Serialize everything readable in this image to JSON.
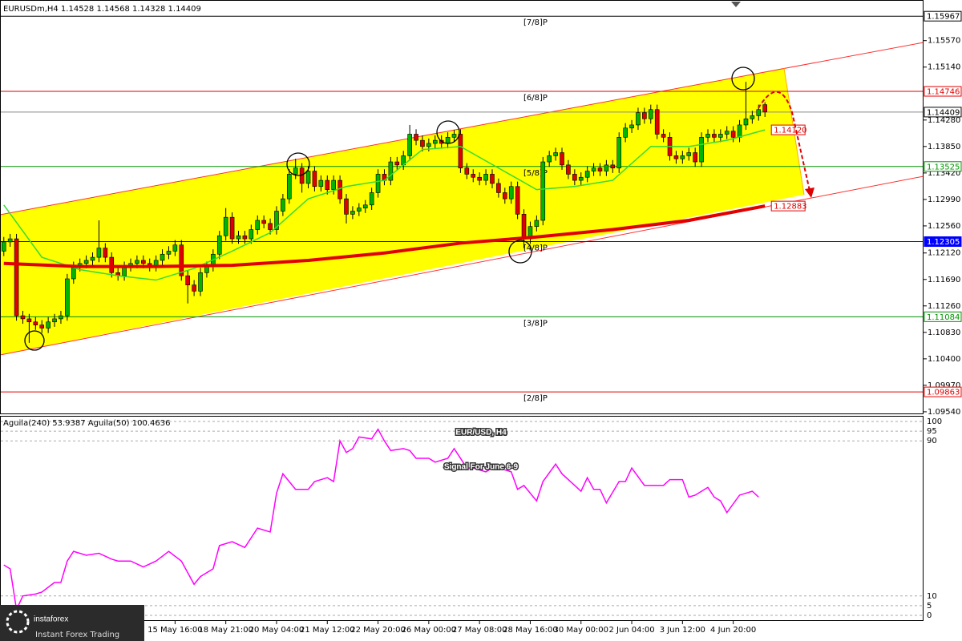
{
  "chart_data": {
    "type": "candlestick",
    "header": "EURUSDm,H4  1.14528 1.14568 1.14328 1.14409",
    "title": "EUR/USD, H4",
    "subtitle": "Signal For June 6-9",
    "up_color": "#00b400",
    "down_color": "#e00000",
    "xlim": [
      -0.6,
      145
    ],
    "ylim": [
      1.095,
      1.1623
    ],
    "yticks": [
      {
        "value": 1.1557,
        "label": "1.15570"
      },
      {
        "value": 1.1514,
        "label": "1.15140"
      },
      {
        "value": 1.1428,
        "label": "1.14280"
      },
      {
        "value": 1.1385,
        "label": "1.13850"
      },
      {
        "value": 1.1342,
        "label": "1.13420"
      },
      {
        "value": 1.1299,
        "label": "1.12990"
      },
      {
        "value": 1.1256,
        "label": "1.12560"
      },
      {
        "value": 1.1212,
        "label": "1.12120"
      },
      {
        "value": 1.1169,
        "label": "1.11690"
      },
      {
        "value": 1.1126,
        "label": "1.11260"
      },
      {
        "value": 1.1083,
        "label": "1.10830"
      },
      {
        "value": 1.104,
        "label": "1.10400"
      },
      {
        "value": 1.0997,
        "label": "1.09970"
      },
      {
        "value": 1.0954,
        "label": "1.09540"
      }
    ],
    "xticks": [
      {
        "value": 27,
        "label": "15 May 16:00"
      },
      {
        "value": 35,
        "label": "18 May 21:00"
      },
      {
        "value": 43,
        "label": "20 May 04:00"
      },
      {
        "value": 51,
        "label": "21 May 12:00"
      },
      {
        "value": 59,
        "label": "22 May 20:00"
      },
      {
        "value": 67,
        "label": "26 May 00:00"
      },
      {
        "value": 75,
        "label": "27 May 08:00"
      },
      {
        "value": 83,
        "label": "28 May 16:00"
      },
      {
        "value": 91,
        "label": "30 May 00:00"
      },
      {
        "value": 99,
        "label": "2 Jun 04:00"
      },
      {
        "value": 107,
        "label": "3 Jun 12:00"
      },
      {
        "value": 115,
        "label": "4 Jun 20:00"
      }
    ],
    "levels": [
      {
        "label": "[7/8]P",
        "value": 1.15967,
        "color": "#000000"
      },
      {
        "label": "[6/8]P",
        "value": 1.14746,
        "color": "#e00000"
      },
      {
        "label": "[5/8]P",
        "value": 1.13525,
        "color": "#009000"
      },
      {
        "label": "[4/8]P",
        "value": 1.12305,
        "color": "#0000ff"
      },
      {
        "label": "[3/8]P",
        "value": 1.11084,
        "color": "#009000"
      },
      {
        "label": "[2/8]P",
        "value": 1.09863,
        "color": "#e00000"
      }
    ],
    "current_price": 1.14409,
    "ohlc": [
      [
        1.1215,
        1.1238,
        1.1207,
        1.123
      ],
      [
        1.123,
        1.1243,
        1.1222,
        1.1235
      ],
      [
        1.1235,
        1.1243,
        1.1102,
        1.111
      ],
      [
        1.111,
        1.1118,
        1.1097,
        1.1105
      ],
      [
        1.1105,
        1.1113,
        1.1066,
        1.11
      ],
      [
        1.11,
        1.1108,
        1.1087,
        1.1095
      ],
      [
        1.1095,
        1.1103,
        1.1082,
        1.109
      ],
      [
        1.109,
        1.1108,
        1.1082,
        1.11
      ],
      [
        1.11,
        1.1113,
        1.1092,
        1.1105
      ],
      [
        1.1105,
        1.1118,
        1.1097,
        1.111
      ],
      [
        1.111,
        1.1178,
        1.1102,
        1.117
      ],
      [
        1.117,
        1.1198,
        1.1162,
        1.119
      ],
      [
        1.119,
        1.1203,
        1.1182,
        1.1195
      ],
      [
        1.1195,
        1.1208,
        1.1187,
        1.12
      ],
      [
        1.12,
        1.1213,
        1.1192,
        1.1205
      ],
      [
        1.1205,
        1.1265,
        1.1197,
        1.122
      ],
      [
        1.122,
        1.1228,
        1.1197,
        1.1205
      ],
      [
        1.1205,
        1.1213,
        1.1172,
        1.118
      ],
      [
        1.118,
        1.1188,
        1.1167,
        1.1175
      ],
      [
        1.1175,
        1.1198,
        1.1167,
        1.119
      ],
      [
        1.119,
        1.1203,
        1.1182,
        1.1195
      ],
      [
        1.1195,
        1.1208,
        1.1187,
        1.12
      ],
      [
        1.12,
        1.1208,
        1.1187,
        1.1195
      ],
      [
        1.1195,
        1.1203,
        1.1182,
        1.119
      ],
      [
        1.119,
        1.1208,
        1.1182,
        1.12
      ],
      [
        1.12,
        1.1218,
        1.1192,
        1.121
      ],
      [
        1.121,
        1.1223,
        1.1202,
        1.1215
      ],
      [
        1.1215,
        1.1233,
        1.1207,
        1.1225
      ],
      [
        1.1225,
        1.1233,
        1.1167,
        1.1175
      ],
      [
        1.1175,
        1.1183,
        1.113,
        1.116
      ],
      [
        1.116,
        1.1168,
        1.1142,
        1.115
      ],
      [
        1.115,
        1.1188,
        1.1142,
        1.118
      ],
      [
        1.118,
        1.1198,
        1.1172,
        1.119
      ],
      [
        1.119,
        1.1218,
        1.1182,
        1.121
      ],
      [
        1.121,
        1.1248,
        1.1202,
        1.124
      ],
      [
        1.124,
        1.1285,
        1.1232,
        1.127
      ],
      [
        1.127,
        1.1278,
        1.1227,
        1.1235
      ],
      [
        1.1235,
        1.1248,
        1.1227,
        1.124
      ],
      [
        1.124,
        1.1248,
        1.1227,
        1.1235
      ],
      [
        1.1235,
        1.1258,
        1.1227,
        1.125
      ],
      [
        1.125,
        1.1273,
        1.1242,
        1.1265
      ],
      [
        1.1265,
        1.1273,
        1.1252,
        1.126
      ],
      [
        1.126,
        1.1268,
        1.1242,
        1.125
      ],
      [
        1.125,
        1.1288,
        1.1242,
        1.128
      ],
      [
        1.128,
        1.1308,
        1.1272,
        1.13
      ],
      [
        1.13,
        1.1348,
        1.1292,
        1.134
      ],
      [
        1.134,
        1.1365,
        1.1332,
        1.135
      ],
      [
        1.135,
        1.1358,
        1.131,
        1.1325
      ],
      [
        1.1325,
        1.1353,
        1.1317,
        1.1345
      ],
      [
        1.1345,
        1.1353,
        1.1312,
        1.132
      ],
      [
        1.132,
        1.1338,
        1.1312,
        1.133
      ],
      [
        1.133,
        1.1338,
        1.1307,
        1.1315
      ],
      [
        1.1315,
        1.1338,
        1.1307,
        1.133
      ],
      [
        1.133,
        1.1338,
        1.1292,
        1.13
      ],
      [
        1.13,
        1.1308,
        1.126,
        1.1275
      ],
      [
        1.1275,
        1.1288,
        1.1267,
        1.128
      ],
      [
        1.128,
        1.1293,
        1.1272,
        1.1285
      ],
      [
        1.1285,
        1.1298,
        1.1277,
        1.129
      ],
      [
        1.129,
        1.1318,
        1.1282,
        1.131
      ],
      [
        1.131,
        1.1348,
        1.1302,
        1.134
      ],
      [
        1.134,
        1.1348,
        1.1322,
        1.133
      ],
      [
        1.133,
        1.1368,
        1.1322,
        1.136
      ],
      [
        1.136,
        1.1368,
        1.1347,
        1.1355
      ],
      [
        1.1355,
        1.1378,
        1.1347,
        1.137
      ],
      [
        1.137,
        1.142,
        1.1362,
        1.1405
      ],
      [
        1.1405,
        1.1413,
        1.1387,
        1.1395
      ],
      [
        1.1395,
        1.1403,
        1.1377,
        1.1385
      ],
      [
        1.1385,
        1.1398,
        1.1377,
        1.139
      ],
      [
        1.139,
        1.1403,
        1.1382,
        1.1395
      ],
      [
        1.1395,
        1.1403,
        1.1382,
        1.139
      ],
      [
        1.139,
        1.1408,
        1.1382,
        1.14
      ],
      [
        1.14,
        1.1412,
        1.1392,
        1.1405
      ],
      [
        1.1405,
        1.1413,
        1.1342,
        1.135
      ],
      [
        1.135,
        1.1358,
        1.1332,
        1.134
      ],
      [
        1.134,
        1.1348,
        1.1327,
        1.1335
      ],
      [
        1.1335,
        1.1343,
        1.1322,
        1.133
      ],
      [
        1.133,
        1.1348,
        1.1322,
        1.134
      ],
      [
        1.134,
        1.1348,
        1.1317,
        1.1325
      ],
      [
        1.1325,
        1.1333,
        1.1302,
        1.131
      ],
      [
        1.131,
        1.1318,
        1.1292,
        1.13
      ],
      [
        1.13,
        1.1328,
        1.1292,
        1.132
      ],
      [
        1.132,
        1.1328,
        1.1267,
        1.1275
      ],
      [
        1.1275,
        1.1283,
        1.122,
        1.1235
      ],
      [
        1.1235,
        1.1263,
        1.1227,
        1.1255
      ],
      [
        1.1255,
        1.1273,
        1.1247,
        1.1265
      ],
      [
        1.1265,
        1.1368,
        1.1257,
        1.136
      ],
      [
        1.136,
        1.1378,
        1.1352,
        1.137
      ],
      [
        1.137,
        1.1383,
        1.1362,
        1.1375
      ],
      [
        1.1375,
        1.1383,
        1.1347,
        1.1355
      ],
      [
        1.1355,
        1.1363,
        1.1332,
        1.134
      ],
      [
        1.134,
        1.1348,
        1.1322,
        1.133
      ],
      [
        1.133,
        1.1343,
        1.1322,
        1.1335
      ],
      [
        1.1335,
        1.1353,
        1.1327,
        1.1345
      ],
      [
        1.1345,
        1.1358,
        1.1337,
        1.135
      ],
      [
        1.135,
        1.1358,
        1.1337,
        1.1345
      ],
      [
        1.1345,
        1.1363,
        1.1337,
        1.1355
      ],
      [
        1.1355,
        1.1363,
        1.1342,
        1.135
      ],
      [
        1.135,
        1.1408,
        1.1342,
        1.14
      ],
      [
        1.14,
        1.1423,
        1.1392,
        1.1415
      ],
      [
        1.1415,
        1.1428,
        1.1407,
        1.142
      ],
      [
        1.142,
        1.1448,
        1.1412,
        1.144
      ],
      [
        1.144,
        1.1448,
        1.1422,
        1.143
      ],
      [
        1.143,
        1.1453,
        1.1422,
        1.1445
      ],
      [
        1.1445,
        1.1453,
        1.1397,
        1.1405
      ],
      [
        1.1405,
        1.1413,
        1.1392,
        1.14
      ],
      [
        1.14,
        1.1408,
        1.1362,
        1.137
      ],
      [
        1.137,
        1.1378,
        1.1357,
        1.1365
      ],
      [
        1.1365,
        1.1378,
        1.1357,
        1.137
      ],
      [
        1.137,
        1.1383,
        1.1362,
        1.1375
      ],
      [
        1.1375,
        1.1383,
        1.1352,
        1.136
      ],
      [
        1.136,
        1.1408,
        1.1352,
        1.14
      ],
      [
        1.14,
        1.1413,
        1.1392,
        1.1405
      ],
      [
        1.1405,
        1.1413,
        1.1392,
        1.14
      ],
      [
        1.14,
        1.1413,
        1.1392,
        1.1405
      ],
      [
        1.1405,
        1.1418,
        1.1397,
        1.141
      ],
      [
        1.141,
        1.1418,
        1.1392,
        1.14
      ],
      [
        1.14,
        1.1428,
        1.1392,
        1.142
      ],
      [
        1.142,
        1.149,
        1.1412,
        1.143
      ],
      [
        1.143,
        1.1443,
        1.1422,
        1.1435
      ],
      [
        1.1435,
        1.1453,
        1.1427,
        1.1445
      ],
      [
        1.1453,
        1.1457,
        1.1433,
        1.1441
      ]
    ],
    "ma": [
      {
        "color": "#33dd33",
        "width": 1.5,
        "x": [
          0,
          6,
          12,
          18,
          24,
          30,
          36,
          42,
          48,
          54,
          60,
          66,
          72,
          78,
          84,
          90,
          96,
          102,
          108,
          114,
          120
        ],
        "values": [
          1.129,
          1.1205,
          1.1185,
          1.1175,
          1.1168,
          1.1187,
          1.1215,
          1.1245,
          1.13,
          1.132,
          1.133,
          1.138,
          1.1385,
          1.135,
          1.1315,
          1.132,
          1.133,
          1.1385,
          1.1385,
          1.1395,
          1.1412
        ],
        "value_labels": [
          null,
          null,
          null,
          null,
          null,
          null,
          null,
          null,
          null,
          null,
          null,
          null,
          null,
          null,
          null,
          null,
          null,
          null,
          null,
          null,
          "1.14120"
        ]
      },
      {
        "color": "#e00000",
        "width": 4,
        "x": [
          0,
          12,
          24,
          36,
          48,
          60,
          72,
          84,
          96,
          108,
          120
        ],
        "values": [
          1.1195,
          1.119,
          1.119,
          1.1192,
          1.12,
          1.1212,
          1.1228,
          1.1238,
          1.125,
          1.1265,
          1.12883
        ],
        "value_labels": [
          null,
          null,
          null,
          null,
          null,
          null,
          null,
          null,
          null,
          null,
          "1.12883"
        ]
      }
    ],
    "oscillator": {
      "header": "Aguila(240) 53.9387  Aguila(50) 100.4636",
      "color": "#ff00ff",
      "ylim": [
        0,
        100
      ],
      "yticks": [
        100,
        95,
        90,
        10,
        5,
        0
      ],
      "x": [
        0,
        1,
        2,
        3,
        5,
        6,
        8,
        9,
        10,
        11,
        13,
        15,
        17,
        18,
        20,
        22,
        24,
        26,
        28,
        30,
        31,
        33,
        34,
        36,
        38,
        40,
        42,
        43,
        44,
        46,
        48,
        49,
        51,
        52,
        53,
        54,
        55,
        56,
        58,
        59,
        60,
        61,
        63,
        64,
        65,
        67,
        68,
        70,
        71,
        73,
        74,
        76,
        77,
        78,
        80,
        81,
        82,
        84,
        85,
        87,
        88,
        90,
        91,
        92,
        93,
        94,
        95,
        97,
        98,
        99,
        101,
        102,
        104,
        105,
        107,
        108,
        109,
        111,
        112,
        113,
        114,
        116,
        117,
        118,
        119
      ],
      "values": [
        26,
        24,
        3,
        10,
        11,
        12,
        17,
        17,
        28,
        33,
        31,
        32,
        29,
        28,
        28,
        25,
        28,
        33,
        28,
        16,
        20,
        24,
        36,
        38,
        35,
        45,
        43,
        63,
        73,
        65,
        65,
        69,
        71,
        69,
        90,
        84,
        86,
        92,
        91,
        96,
        90,
        85,
        86,
        85,
        81,
        81,
        79,
        81,
        86,
        76,
        76,
        74,
        76,
        76,
        74,
        65,
        67,
        59,
        69,
        78,
        73,
        67,
        64,
        71,
        65,
        65,
        58,
        69,
        69,
        76,
        67,
        67,
        67,
        70,
        70,
        61,
        62,
        66,
        61,
        59,
        53,
        62,
        63,
        64,
        61
      ]
    },
    "logo": "instaforex",
    "logo_tagline": "Instant Forex Trading"
  }
}
